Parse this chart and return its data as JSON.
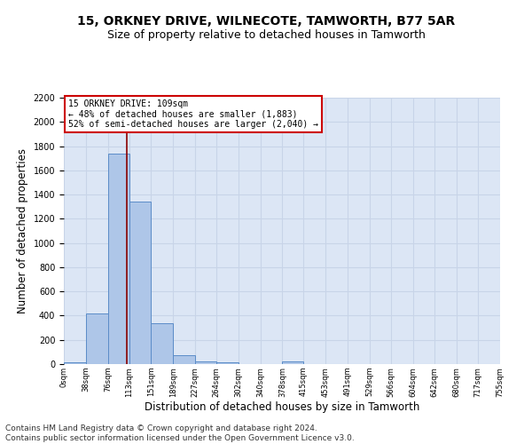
{
  "title_line1": "15, ORKNEY DRIVE, WILNECOTE, TAMWORTH, B77 5AR",
  "title_line2": "Size of property relative to detached houses in Tamworth",
  "xlabel": "Distribution of detached houses by size in Tamworth",
  "ylabel": "Number of detached properties",
  "footer_line1": "Contains HM Land Registry data © Crown copyright and database right 2024.",
  "footer_line2": "Contains public sector information licensed under the Open Government Licence v3.0.",
  "annotation_line1": "15 ORKNEY DRIVE: 109sqm",
  "annotation_line2": "← 48% of detached houses are smaller (1,883)",
  "annotation_line3": "52% of semi-detached houses are larger (2,040) →",
  "property_size": 109,
  "bin_edges": [
    0,
    38,
    76,
    113,
    151,
    189,
    227,
    264,
    302,
    340,
    378,
    415,
    453,
    491,
    529,
    566,
    604,
    642,
    680,
    717,
    755
  ],
  "bin_counts": [
    15,
    415,
    1735,
    1345,
    340,
    75,
    25,
    15,
    0,
    0,
    25,
    0,
    0,
    0,
    0,
    0,
    0,
    0,
    0,
    0
  ],
  "bar_color": "#aec6e8",
  "bar_edge_color": "#5b8cc8",
  "vline_color": "#8b0000",
  "vline_x": 109,
  "ylim": [
    0,
    2200
  ],
  "yticks": [
    0,
    200,
    400,
    600,
    800,
    1000,
    1200,
    1400,
    1600,
    1800,
    2000,
    2200
  ],
  "grid_color": "#c8d4e8",
  "background_color": "#dce6f5",
  "title1_fontsize": 10,
  "title2_fontsize": 9,
  "xlabel_fontsize": 8.5,
  "ylabel_fontsize": 8.5,
  "annotation_box_facecolor": "white",
  "annotation_box_edge": "#cc0000",
  "footer_fontsize": 6.5
}
